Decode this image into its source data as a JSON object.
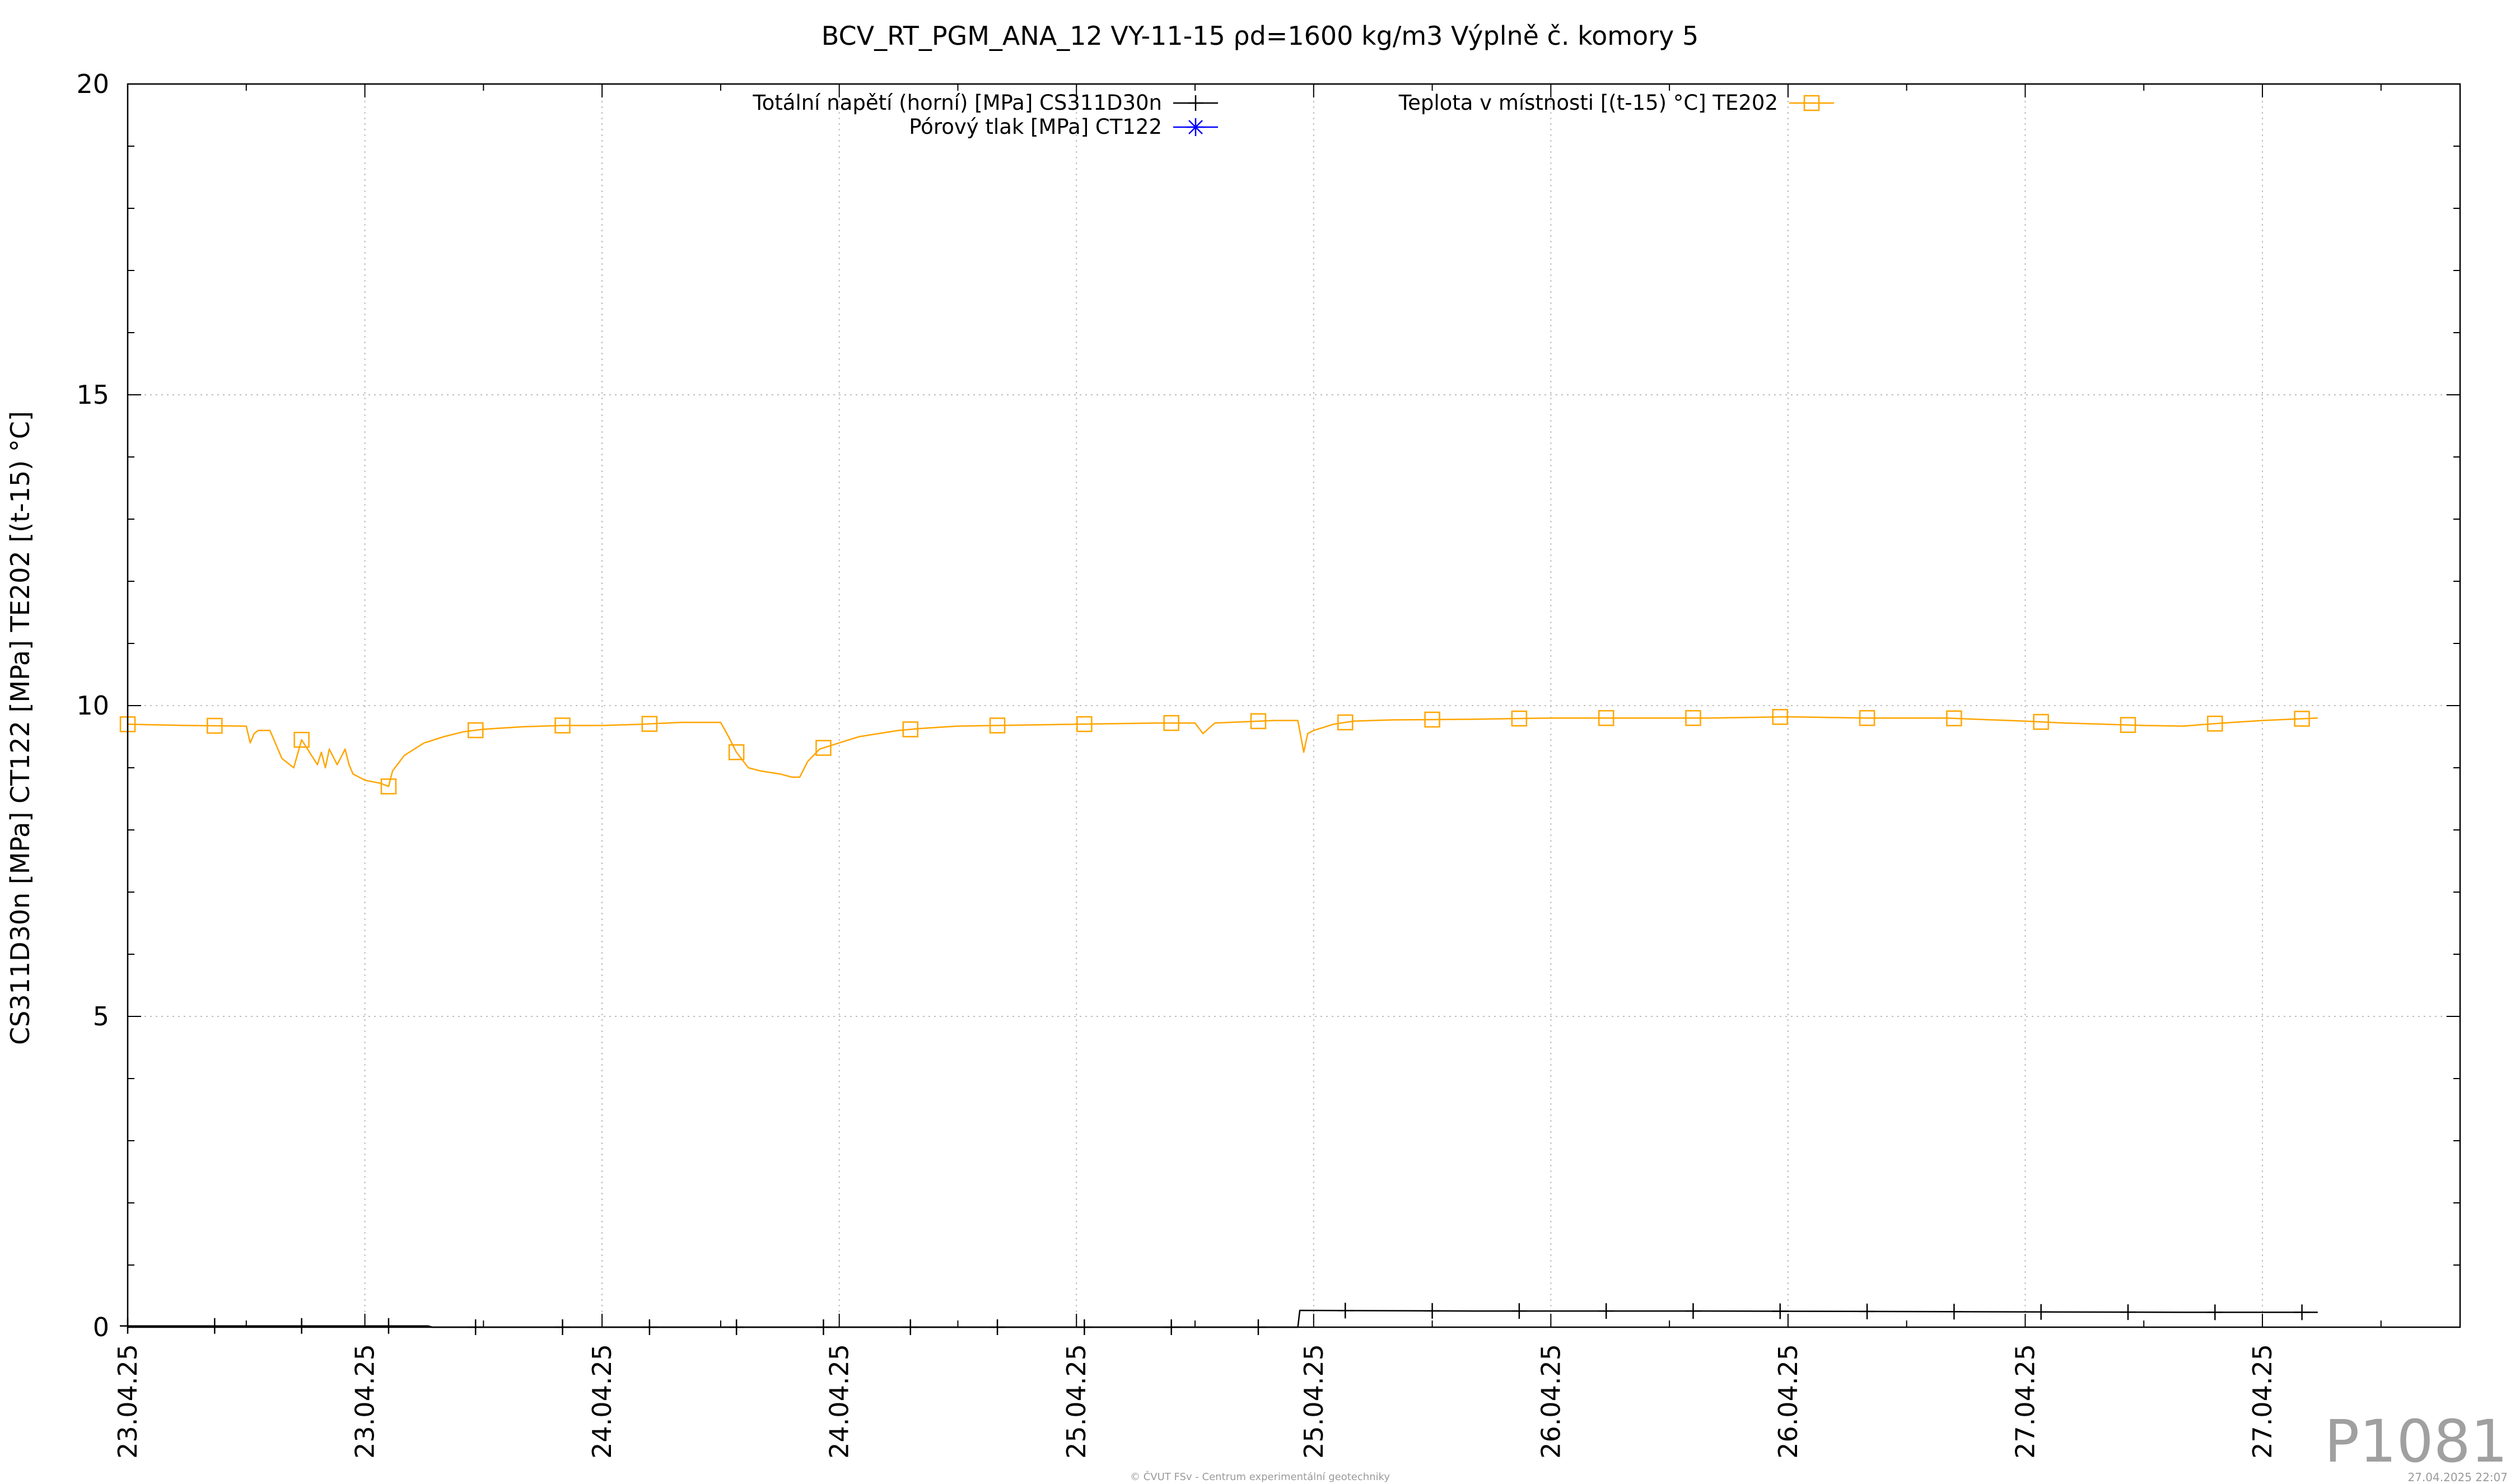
{
  "chart_data": {
    "type": "line",
    "title": "BCV_RT_PGM_ANA_12 VY-11-15 ρd=1600 kg/m3 Výplně č. komory 5",
    "ylabel": "CS311D30n [MPa] CT122 [MPa] TE202 [(t-15) °C]",
    "xlabel": "",
    "ylim": [
      0,
      20
    ],
    "yticks": [
      0,
      5,
      10,
      15,
      20
    ],
    "xlim": [
      0,
      59
    ],
    "xticks": [
      {
        "x": 0,
        "label": "23.04.25"
      },
      {
        "x": 6,
        "label": "23.04.25"
      },
      {
        "x": 12,
        "label": "24.04.25"
      },
      {
        "x": 18,
        "label": "24.04.25"
      },
      {
        "x": 24,
        "label": "25.04.25"
      },
      {
        "x": 30,
        "label": "25.04.25"
      },
      {
        "x": 36,
        "label": "26.04.25"
      },
      {
        "x": 42,
        "label": "26.04.25"
      },
      {
        "x": 48,
        "label": "27.04.25"
      },
      {
        "x": 54,
        "label": "27.04.25"
      }
    ],
    "grid": true,
    "legend_position": "top",
    "series": [
      {
        "name": "Totální napětí (horní) [MPa] CS311D30n",
        "color": "#000000",
        "marker": "plus",
        "x": [
          0,
          7.6,
          7.7,
          13.0,
          24.0,
          29.6,
          29.65,
          34.0,
          40.0,
          46.0,
          52.0,
          55.4
        ],
        "y": [
          0.02,
          0.02,
          0.0,
          0.0,
          0.0,
          0.0,
          0.27,
          0.26,
          0.26,
          0.25,
          0.24,
          0.24
        ],
        "marker_x": [
          0,
          2.2,
          4.4,
          6.6,
          8.8,
          11.0,
          13.2,
          15.4,
          17.6,
          19.8,
          22.0,
          24.2,
          26.4,
          28.6,
          30.8,
          33.0,
          35.2,
          37.4,
          39.6,
          41.8,
          44.0,
          46.2,
          48.4,
          50.6,
          52.8,
          55.0
        ]
      },
      {
        "name": "Pórový tlak [MPa] CT122",
        "color": "#0000ff",
        "marker": "asterisk",
        "x": [],
        "y": []
      },
      {
        "name": "Teplota v místnosti [(t-15) °C] TE202",
        "color": "#ffa500",
        "marker": "square",
        "x": [
          0,
          1.5,
          3.0,
          3.1,
          3.2,
          3.3,
          3.6,
          3.8,
          3.9,
          4.2,
          4.4,
          4.6,
          4.8,
          4.9,
          5.0,
          5.1,
          5.3,
          5.5,
          5.6,
          5.7,
          6.0,
          6.4,
          6.6,
          6.7,
          7.0,
          7.5,
          8.0,
          8.5,
          9.0,
          10.0,
          11.0,
          12.0,
          13.0,
          14.0,
          15.0,
          15.2,
          15.4,
          15.7,
          16.0,
          16.5,
          16.8,
          17.0,
          17.2,
          17.5,
          18.0,
          18.5,
          19.0,
          19.5,
          20.0,
          21.0,
          22.0,
          24.0,
          26.0,
          27.0,
          27.2,
          27.5,
          29.0,
          29.6,
          29.75,
          29.85,
          30.0,
          30.5,
          31.0,
          32.0,
          34.0,
          36.0,
          38.0,
          40.0,
          42.0,
          44.0,
          46.0,
          48.0,
          49.0,
          50.0,
          51.0,
          52.0,
          53.0,
          54.0,
          55.4
        ],
        "y": [
          9.7,
          9.68,
          9.67,
          9.4,
          9.55,
          9.6,
          9.6,
          9.3,
          9.15,
          9.0,
          9.45,
          9.25,
          9.05,
          9.25,
          9.0,
          9.3,
          9.05,
          9.3,
          9.05,
          8.9,
          8.8,
          8.75,
          8.7,
          8.95,
          9.2,
          9.4,
          9.5,
          9.58,
          9.62,
          9.66,
          9.68,
          9.68,
          9.7,
          9.73,
          9.73,
          9.5,
          9.25,
          9.0,
          8.95,
          8.9,
          8.85,
          8.85,
          9.1,
          9.3,
          9.4,
          9.5,
          9.55,
          9.6,
          9.63,
          9.67,
          9.68,
          9.7,
          9.72,
          9.72,
          9.55,
          9.72,
          9.76,
          9.76,
          9.25,
          9.55,
          9.6,
          9.7,
          9.75,
          9.77,
          9.78,
          9.8,
          9.8,
          9.8,
          9.82,
          9.8,
          9.8,
          9.75,
          9.72,
          9.7,
          9.68,
          9.67,
          9.72,
          9.76,
          9.8
        ],
        "marker_x": [
          0,
          2.2,
          4.4,
          6.6,
          8.8,
          11.0,
          13.2,
          15.4,
          17.6,
          19.8,
          22.0,
          24.2,
          26.4,
          28.6,
          30.8,
          33.0,
          35.2,
          37.4,
          39.6,
          41.8,
          44.0,
          46.2,
          48.4,
          50.6,
          52.8,
          55.0
        ]
      }
    ]
  },
  "watermark": "P1081",
  "footer": {
    "left": "© ČVUT FSv - Centrum experimentální geotechniky",
    "right": "27.04.2025 22:07"
  }
}
